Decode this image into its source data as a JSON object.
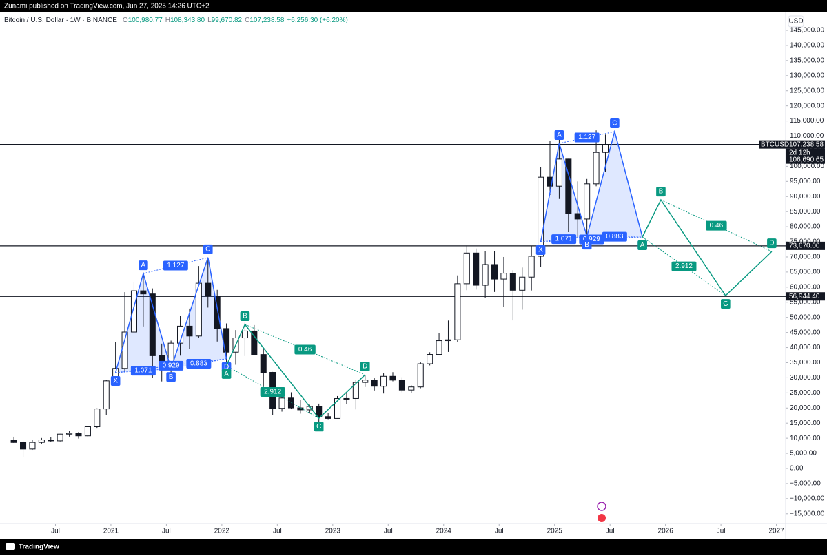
{
  "header": {
    "publisher": "Zunami published on TradingView.com, Jun 27, 2025 14:26 UTC+2",
    "symbol": "Bitcoin / U.S. Dollar · 1W · BINANCE",
    "ohlc": [
      {
        "key": "O",
        "value": "100,980.77"
      },
      {
        "key": "H",
        "value": "108,343.80"
      },
      {
        "key": "L",
        "value": "99,670.82"
      },
      {
        "key": "C",
        "value": "107,238.58"
      }
    ],
    "change": "+6,256.30 (+6.20%)",
    "currency": "USD"
  },
  "footer": {
    "brand": "TradingView"
  },
  "chart_data": {
    "type": "candlestick",
    "x": [
      "2020-02",
      "2020-03",
      "2020-04",
      "2020-05",
      "2020-06",
      "2020-07",
      "2020-08",
      "2020-09",
      "2020-10",
      "2020-11",
      "2020-12",
      "2021-01",
      "2021-02",
      "2021-03",
      "2021-04",
      "2021-05",
      "2021-06",
      "2021-07",
      "2021-08",
      "2021-09",
      "2021-10",
      "2021-11",
      "2021-12",
      "2022-01",
      "2022-02",
      "2022-03",
      "2022-04",
      "2022-05",
      "2022-06",
      "2022-07",
      "2022-08",
      "2022-09",
      "2022-10",
      "2022-11",
      "2022-12",
      "2023-01",
      "2023-02",
      "2023-03",
      "2023-04",
      "2023-05",
      "2023-06",
      "2023-07",
      "2023-08",
      "2023-09",
      "2023-10",
      "2023-11",
      "2023-12",
      "2024-01",
      "2024-02",
      "2024-03",
      "2024-04",
      "2024-05",
      "2024-06",
      "2024-07",
      "2024-08",
      "2024-09",
      "2024-10",
      "2024-11",
      "2024-12",
      "2025-01",
      "2025-02",
      "2025-03",
      "2025-04",
      "2025-05",
      "2025-06"
    ],
    "open": [
      9350,
      8600,
      6420,
      8630,
      9450,
      9140,
      11350,
      11650,
      10780,
      13800,
      19700,
      28990,
      33110,
      45140,
      58800,
      57750,
      37300,
      35040,
      41460,
      47100,
      43820,
      61300,
      57000,
      46300,
      38480,
      43200,
      45500,
      37700,
      31800,
      19900,
      23300,
      20050,
      19400,
      20500,
      17150,
      16550,
      23130,
      23150,
      28470,
      29250,
      27200,
      30480,
      29230,
      25950,
      26970,
      34640,
      37720,
      42280,
      42580,
      61130,
      71290,
      60640,
      67490,
      62680,
      64620,
      58980,
      63330,
      70220,
      96400,
      93430,
      102400,
      84350,
      82550,
      94200,
      104600
    ],
    "high": [
      10500,
      9180,
      9450,
      10070,
      10380,
      11450,
      12470,
      12050,
      14100,
      19900,
      29300,
      41950,
      58350,
      61780,
      64850,
      59600,
      41300,
      42300,
      50500,
      52920,
      67000,
      69000,
      59100,
      47990,
      45800,
      48200,
      47450,
      40000,
      31950,
      24600,
      25200,
      22800,
      21100,
      21450,
      18400,
      23950,
      25250,
      29200,
      31000,
      29850,
      31450,
      31850,
      30200,
      27500,
      35200,
      38450,
      44700,
      48950,
      63900,
      73780,
      72800,
      71980,
      71950,
      70000,
      65600,
      66500,
      73600,
      99800,
      108350,
      109600,
      102500,
      95000,
      95800,
      111900,
      110500
    ],
    "low": [
      8450,
      3850,
      6150,
      8120,
      8850,
      8950,
      10530,
      9880,
      10380,
      13200,
      17600,
      28130,
      32300,
      44950,
      47000,
      30000,
      28800,
      29300,
      37330,
      39600,
      43280,
      53250,
      42000,
      32950,
      34300,
      37200,
      37600,
      26700,
      17600,
      18800,
      19600,
      18150,
      18200,
      15500,
      16300,
      16500,
      21350,
      19550,
      26950,
      25800,
      24800,
      28850,
      25200,
      24900,
      26550,
      34100,
      37600,
      38550,
      41900,
      59000,
      59200,
      56550,
      58400,
      53500,
      49000,
      52550,
      58900,
      66800,
      90500,
      89200,
      78200,
      76600,
      74500,
      93400,
      98200
    ],
    "close": [
      8600,
      6420,
      8630,
      9450,
      9140,
      11350,
      11650,
      10780,
      13800,
      19700,
      28990,
      33110,
      45140,
      58800,
      57750,
      37300,
      35040,
      41460,
      47100,
      43820,
      61300,
      57000,
      46300,
      38480,
      43200,
      45500,
      37700,
      31800,
      19900,
      23300,
      20050,
      19400,
      20500,
      17150,
      16550,
      23130,
      23150,
      28470,
      29250,
      27200,
      30480,
      29230,
      25950,
      26970,
      34640,
      37720,
      42280,
      42580,
      61130,
      71290,
      60640,
      67490,
      62680,
      64620,
      58980,
      63330,
      70220,
      96400,
      93430,
      102400,
      84350,
      82550,
      94200,
      104600,
      107240
    ],
    "up_color": "#ffffff",
    "down_color": "#131722",
    "xlim": [
      "2020-01",
      "2027-02"
    ],
    "xticks": [
      {
        "value": "2020-07",
        "label": "Jul"
      },
      {
        "value": "2021-01",
        "label": "2021"
      },
      {
        "value": "2021-07",
        "label": "Jul"
      },
      {
        "value": "2022-01",
        "label": "2022"
      },
      {
        "value": "2022-07",
        "label": "Jul"
      },
      {
        "value": "2023-01",
        "label": "2023"
      },
      {
        "value": "2023-07",
        "label": "Jul"
      },
      {
        "value": "2024-01",
        "label": "2024"
      },
      {
        "value": "2024-07",
        "label": "Jul"
      },
      {
        "value": "2025-01",
        "label": "2025"
      },
      {
        "value": "2025-07",
        "label": "Jul"
      },
      {
        "value": "2026-01",
        "label": "2026"
      },
      {
        "value": "2026-07",
        "label": "Jul"
      },
      {
        "value": "2027-01",
        "label": "2027"
      }
    ],
    "ylim": [
      -18240,
      150930
    ],
    "yticks": [
      {
        "value": 145000,
        "label": "145,000.00"
      },
      {
        "value": 140000,
        "label": "140,000.00"
      },
      {
        "value": 135000,
        "label": "135,000.00"
      },
      {
        "value": 130000,
        "label": "130,000.00"
      },
      {
        "value": 125000,
        "label": "125,000.00"
      },
      {
        "value": 120000,
        "label": "120,000.00"
      },
      {
        "value": 115000,
        "label": "115,000.00"
      },
      {
        "value": 110000,
        "label": "110,000.00"
      },
      {
        "value": 105000,
        "label": "105,000.00"
      },
      {
        "value": 100000,
        "label": "100,000.00"
      },
      {
        "value": 95000,
        "label": "95,000.00"
      },
      {
        "value": 90000,
        "label": "90,000.00"
      },
      {
        "value": 85000,
        "label": "85,000.00"
      },
      {
        "value": 80000,
        "label": "80,000.00"
      },
      {
        "value": 75000,
        "label": "75,000.00"
      },
      {
        "value": 70000,
        "label": "70,000.00"
      },
      {
        "value": 65000,
        "label": "65,000.00"
      },
      {
        "value": 60000,
        "label": "60,000.00"
      },
      {
        "value": 55000,
        "label": "55,000.00"
      },
      {
        "value": 50000,
        "label": "50,000.00"
      },
      {
        "value": 45000,
        "label": "45,000.00"
      },
      {
        "value": 40000,
        "label": "40,000.00"
      },
      {
        "value": 35000,
        "label": "35,000.00"
      },
      {
        "value": 30000,
        "label": "30,000.00"
      },
      {
        "value": 25000,
        "label": "25,000.00"
      },
      {
        "value": 20000,
        "label": "20,000.00"
      },
      {
        "value": 15000,
        "label": "15,000.00"
      },
      {
        "value": 10000,
        "label": "10,000.00"
      },
      {
        "value": 5000,
        "label": "5,000.00"
      },
      {
        "value": 0,
        "label": "0.00"
      },
      {
        "value": -5000,
        "label": "−5,000.00"
      },
      {
        "value": -10000,
        "label": "−10,000.00"
      },
      {
        "value": -15000,
        "label": "−15,000.00"
      }
    ],
    "grid": false,
    "levels": [
      {
        "value": 107238.58,
        "label": "107,238.58"
      },
      {
        "value": 73670,
        "label": "73,670.00"
      },
      {
        "value": 56944.4,
        "label": "56,944.40"
      }
    ],
    "price_badge": {
      "symbol": "BTCUSD",
      "countdown": "2d 12h",
      "extra": "106,690.65"
    },
    "patterns": [
      {
        "kind": "xabcd",
        "color": "#2962ff",
        "points": [
          {
            "label": "X",
            "x": "2021-01",
            "y": 31700
          },
          {
            "label": "A",
            "x": "2021-04",
            "y": 64500
          },
          {
            "label": "B",
            "x": "2021-07",
            "y": 33000
          },
          {
            "label": "C",
            "x": "2021-11",
            "y": 69800
          },
          {
            "label": "D",
            "x": "2022-01",
            "y": 36300
          }
        ],
        "ratios": {
          "XB": 1.071,
          "AC": 1.127,
          "BD": 0.883,
          "XD": 0.929
        }
      },
      {
        "kind": "abcd",
        "color": "#089981",
        "points": [
          {
            "label": "A",
            "x": "2022-01",
            "y": 34000
          },
          {
            "label": "B",
            "x": "2022-03",
            "y": 47650
          },
          {
            "label": "C",
            "x": "2022-11",
            "y": 16600
          },
          {
            "label": "D",
            "x": "2023-04",
            "y": 31000
          }
        ],
        "ratios": {
          "AC": 2.912,
          "BD": 0.46
        }
      },
      {
        "kind": "xabcd",
        "color": "#2962ff",
        "points": [
          {
            "label": "X",
            "x": "2024-11",
            "y": 75000
          },
          {
            "label": "A",
            "x": "2025-01",
            "y": 107600
          },
          {
            "label": "B",
            "x": "2025-04",
            "y": 76800
          },
          {
            "label": "C",
            "x": "2025-07",
            "y": 111500
          },
          {
            "label": "D",
            "x": "2025-10",
            "y": 76600
          }
        ],
        "ratios": {
          "XB": 1.071,
          "AC": 1.127,
          "BD": 0.883,
          "XD": 0.929
        }
      },
      {
        "kind": "abcd",
        "color": "#089981",
        "points": [
          {
            "label": "A",
            "x": "2025-10",
            "y": 76600
          },
          {
            "label": "B",
            "x": "2025-12",
            "y": 88900
          },
          {
            "label": "C",
            "x": "2026-07",
            "y": 57200
          },
          {
            "label": "D",
            "x": "2026-12",
            "y": 71800
          }
        ],
        "ratios": {
          "AC": 2.912,
          "BD": 0.46
        }
      }
    ]
  }
}
